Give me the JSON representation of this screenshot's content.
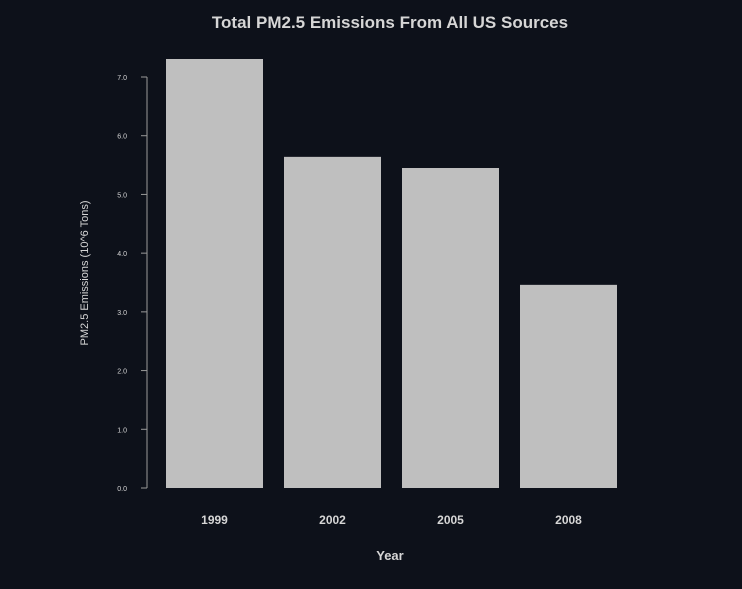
{
  "chart_data": {
    "type": "bar",
    "title": "Total PM2.5 Emissions From All US Sources",
    "xlabel": "Year",
    "ylabel": "PM2.5 Emissions (10^6 Tons)",
    "categories": [
      "1999",
      "2002",
      "2005",
      "2008"
    ],
    "values": [
      7.33,
      5.64,
      5.45,
      3.46
    ],
    "ylim": [
      0,
      7.0
    ],
    "yticks": [
      0,
      1,
      2,
      3,
      4,
      5,
      6,
      7
    ],
    "ytick_labels": [
      "0.0",
      "1.0",
      "2.0",
      "3.0",
      "4.0",
      "5.0",
      "6.0",
      "7.0"
    ],
    "grid": false,
    "legend": "none",
    "colors": {
      "background": "#0d111a",
      "bar": "#bfbfbf",
      "text": "#d6d6d6",
      "axis": "#9a9a9a"
    }
  }
}
